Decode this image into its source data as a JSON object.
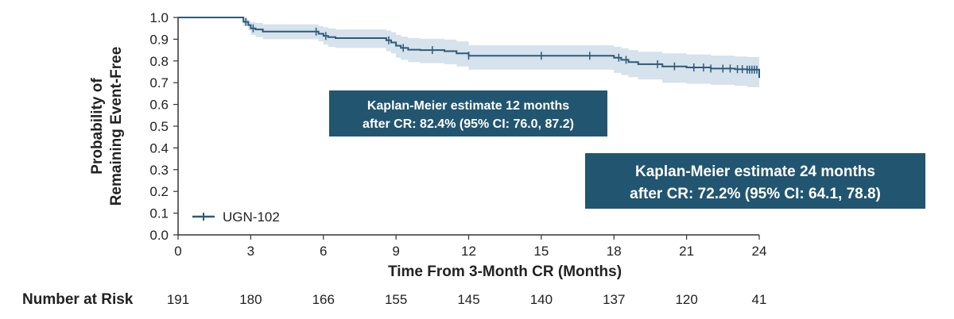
{
  "chart_data": {
    "type": "line",
    "xlabel": "Time From 3-Month CR (Months)",
    "ylabel_lines": [
      "Probability of",
      "Remaining Event-Free"
    ],
    "xlim": [
      0,
      24
    ],
    "ylim": [
      0,
      1
    ],
    "x_ticks": [
      0,
      3,
      6,
      9,
      12,
      15,
      18,
      21,
      24
    ],
    "y_ticks": [
      "0.0",
      "0.1",
      "0.2",
      "0.3",
      "0.4",
      "0.5",
      "0.6",
      "0.7",
      "0.8",
      "0.9",
      "1.0"
    ],
    "grid": false,
    "legend_position": "bottom-left",
    "colors": {
      "line": "#2e5a78",
      "ci_band": "#d6e2ec",
      "annotation_box": "#22556f",
      "axis": "#333333"
    },
    "series": [
      {
        "name": "UGN-102",
        "x": [
          0,
          1.2,
          2.7,
          2.9,
          3.0,
          3.2,
          3.5,
          5.5,
          5.8,
          6.0,
          6.2,
          6.5,
          8.4,
          8.6,
          8.8,
          9.0,
          9.2,
          9.5,
          10.0,
          11.0,
          11.5,
          12.0,
          15.0,
          17.5,
          18.0,
          18.3,
          18.6,
          19.0,
          20.0,
          21.0,
          22.0,
          23.0,
          23.5,
          24.0
        ],
        "y": [
          1.0,
          1.0,
          0.98,
          0.965,
          0.95,
          0.945,
          0.935,
          0.935,
          0.925,
          0.915,
          0.91,
          0.905,
          0.905,
          0.895,
          0.885,
          0.87,
          0.86,
          0.852,
          0.85,
          0.845,
          0.835,
          0.824,
          0.824,
          0.824,
          0.815,
          0.805,
          0.795,
          0.785,
          0.775,
          0.77,
          0.765,
          0.762,
          0.76,
          0.722
        ],
        "ci_lower": [
          1.0,
          1.0,
          0.96,
          0.94,
          0.92,
          0.91,
          0.9,
          0.9,
          0.89,
          0.875,
          0.865,
          0.86,
          0.86,
          0.845,
          0.835,
          0.815,
          0.805,
          0.795,
          0.79,
          0.785,
          0.775,
          0.76,
          0.76,
          0.76,
          0.745,
          0.735,
          0.725,
          0.715,
          0.7,
          0.695,
          0.69,
          0.685,
          0.68,
          0.641
        ],
        "ci_upper": [
          1.0,
          1.0,
          0.995,
          0.985,
          0.978,
          0.975,
          0.968,
          0.968,
          0.96,
          0.955,
          0.95,
          0.945,
          0.945,
          0.94,
          0.932,
          0.92,
          0.912,
          0.905,
          0.902,
          0.898,
          0.89,
          0.872,
          0.872,
          0.872,
          0.865,
          0.858,
          0.85,
          0.842,
          0.835,
          0.83,
          0.825,
          0.82,
          0.818,
          0.788
        ],
        "censor_x": [
          2.8,
          3.1,
          5.7,
          6.1,
          8.7,
          9.3,
          10.5,
          12.0,
          15.0,
          17.0,
          18.2,
          18.5,
          19.8,
          20.5,
          21.3,
          21.7,
          22.0,
          22.5,
          22.8,
          23.1,
          23.3,
          23.5,
          23.6,
          23.7,
          23.8,
          23.9
        ]
      }
    ],
    "annotations": [
      {
        "lines": [
          "Kaplan-Meier estimate 12 months",
          "after CR: 82.4% (95% CI: 76.0, 87.2)"
        ]
      },
      {
        "lines": [
          "Kaplan-Meier estimate 24 months",
          "after CR: 72.2% (95% CI: 64.1, 78.8)"
        ]
      }
    ],
    "risk_table": {
      "title": "Number at Risk",
      "values": [
        "191",
        "180",
        "166",
        "155",
        "145",
        "140",
        "137",
        "120",
        "41"
      ]
    }
  }
}
